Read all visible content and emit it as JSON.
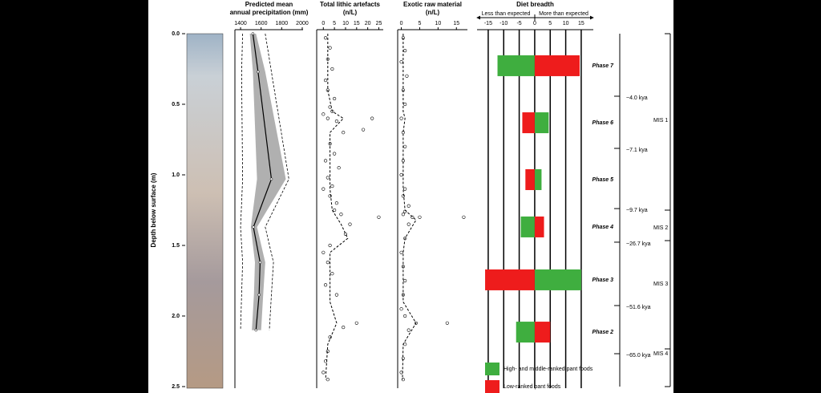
{
  "chart_data": [
    {
      "type": "line",
      "title": [
        "Predicted mean",
        "annual precipitation (mm)"
      ],
      "ylabel": "Depth below surface (m)",
      "ylim": [
        0,
        2.5
      ],
      "yticks": [
        {
          "value": 0,
          "label": "0.0"
        },
        0.5,
        {
          "value": 1,
          "label": "1.0"
        },
        1.5,
        {
          "value": 2,
          "label": "2.0"
        },
        2.5
      ],
      "xlim": [
        1345,
        2008
      ],
      "xticks": [
        1400,
        1600,
        1800,
        2000
      ],
      "depth": [
        0,
        0.27,
        1.03,
        1.37,
        1.62,
        1.85,
        2.1
      ],
      "values": [
        1520,
        1570,
        1700,
        1525,
        1590,
        1580,
        1550
      ],
      "band_low": [
        1490,
        1520,
        1560,
        1500,
        1540,
        1530,
        1510
      ],
      "band_high": [
        1550,
        1640,
        1840,
        1560,
        1640,
        1620,
        1600
      ],
      "ci_low": [
        1420,
        1410,
        1420,
        1400,
        1420,
        1410,
        1400
      ],
      "ci_high": [
        1640,
        1700,
        1870,
        1640,
        1720,
        1700,
        1680
      ],
      "color": "#000000",
      "band_color": "#b0b0b0"
    },
    {
      "type": "scatter",
      "title": [
        "Total lithic artefacts",
        "(n/L)"
      ],
      "xlim": [
        -3,
        27
      ],
      "xticks": [
        0,
        5,
        10,
        15,
        20,
        25
      ],
      "points": {
        "x": [
          1,
          3,
          2,
          4,
          1,
          2,
          5,
          3,
          0,
          2,
          4,
          6,
          22,
          18,
          9,
          3,
          5,
          1,
          7,
          2,
          4,
          3,
          0,
          6,
          5,
          8,
          25,
          12,
          10,
          3,
          0,
          2,
          4,
          1,
          6,
          15,
          9,
          3,
          2,
          1,
          0,
          2
        ],
        "y": [
          0.03,
          0.1,
          0.18,
          0.25,
          0.33,
          0.4,
          0.46,
          0.52,
          0.57,
          0.6,
          0.55,
          0.62,
          0.6,
          0.68,
          0.7,
          0.78,
          0.85,
          0.9,
          0.95,
          1.02,
          1.08,
          1.15,
          1.1,
          1.2,
          1.25,
          1.28,
          1.3,
          1.35,
          1.42,
          1.5,
          1.55,
          1.62,
          1.7,
          1.78,
          1.85,
          2.05,
          2.08,
          2.15,
          2.25,
          2.32,
          2.4,
          2.45
        ]
      },
      "trend": {
        "x": [
          2,
          2,
          2,
          4,
          9,
          3,
          3,
          3,
          4,
          8,
          11,
          3,
          3,
          3,
          6,
          2,
          1
        ],
        "y": [
          0,
          0.2,
          0.4,
          0.55,
          0.6,
          0.7,
          0.9,
          1.1,
          1.25,
          1.35,
          1.45,
          1.55,
          1.7,
          1.9,
          2.05,
          2.2,
          2.45
        ]
      },
      "color": "#000000"
    },
    {
      "type": "scatter",
      "title": [
        "Exotic raw material",
        "(n/L)"
      ],
      "xlim": [
        -1,
        18
      ],
      "xticks": [
        0,
        5,
        10,
        15
      ],
      "points": {
        "x": [
          0.5,
          1,
          0,
          1.5,
          0.5,
          1,
          0,
          0.5,
          1,
          0.5,
          0,
          1,
          0.5,
          2,
          1,
          0.5,
          3,
          5,
          17,
          2,
          1,
          0,
          0.5,
          1,
          0.5,
          0,
          1,
          4,
          12.5,
          2,
          1,
          0.5,
          0,
          0.5
        ],
        "y": [
          0.03,
          0.12,
          0.2,
          0.3,
          0.4,
          0.5,
          0.6,
          0.7,
          0.8,
          0.9,
          1,
          1.1,
          1.15,
          1.22,
          1.26,
          1.28,
          1.3,
          1.3,
          1.3,
          1.35,
          1.45,
          1.55,
          1.65,
          1.75,
          1.85,
          1.95,
          2.0,
          2.05,
          2.05,
          2.1,
          2.2,
          2.3,
          2.4,
          2.45
        ]
      },
      "trend": {
        "x": [
          0.5,
          0.5,
          0.5,
          0.5,
          1,
          0.5,
          0.5,
          0.5,
          1,
          4,
          1,
          0.5,
          0.5,
          0.5,
          4,
          0.5,
          0.3
        ],
        "y": [
          0,
          0.2,
          0.4,
          0.55,
          0.6,
          0.7,
          0.9,
          1.1,
          1.25,
          1.32,
          1.45,
          1.55,
          1.7,
          1.9,
          2.05,
          2.2,
          2.45
        ]
      },
      "color": "#000000"
    },
    {
      "type": "bar",
      "title": [
        "Diet breadth"
      ],
      "left_label": "Less than expected",
      "right_label": "More than expected",
      "xlim": [
        -18.6,
        18.9
      ],
      "xticks": [
        -15,
        -10,
        -5,
        0,
        5,
        10,
        15
      ],
      "categories": [
        "Phase 7",
        "Phase 6",
        "Phase 5",
        "Phase 4",
        "Phase 3",
        "Phase 2"
      ],
      "depth": [
        0.227,
        0.631,
        1.034,
        1.369,
        1.744,
        2.114
      ],
      "series": [
        {
          "name": "High- and middle-ranked pant foods",
          "color": "#3fae3f",
          "values": [
            -12,
            4.5,
            2.2,
            -4.5,
            15,
            -6
          ]
        },
        {
          "name": "Low-ranked pant foods",
          "color": "#ee1c1c",
          "values": [
            14.5,
            -4,
            -3,
            3,
            -16,
            5
          ]
        }
      ],
      "ages": [
        {
          "label": "~4.0 kya",
          "depth": 0.443
        },
        {
          "label": "~7.1 kya",
          "depth": 0.8125
        },
        {
          "label": "~9.7 kya",
          "depth": 1.239
        },
        {
          "label": "~26.7 kya",
          "depth": 1.477
        },
        {
          "label": "~51.6 kya",
          "depth": 1.926
        },
        {
          "label": "~65.0 kya",
          "depth": 2.267
        }
      ],
      "mis": [
        {
          "label": "MIS 1",
          "depth": 0.614
        },
        {
          "label": "MIS 2",
          "depth": 1.375
        },
        {
          "label": "MIS 3",
          "depth": 1.773
        },
        {
          "label": "MIS 4",
          "depth": 2.267
        }
      ]
    }
  ]
}
